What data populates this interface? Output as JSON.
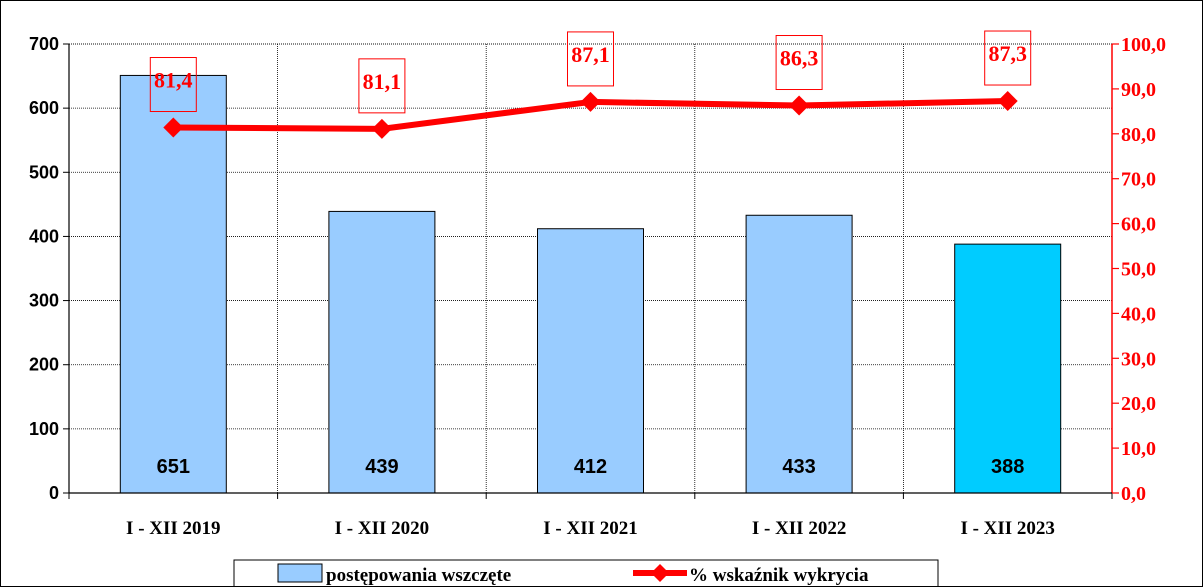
{
  "colors": {
    "bar": "#99ccff",
    "bar_highlight": "#00ccff",
    "line": "#ff0000",
    "axis_left": "#000000",
    "axis_right": "#ff0000"
  },
  "chart_data": {
    "type": "bar",
    "combo": "bar + line (secondary axis)",
    "categories": [
      "I - XII 2019",
      "I - XII 2020",
      "I - XII 2021",
      "I - XII 2022",
      "I - XII 2023"
    ],
    "series": [
      {
        "name": "postępowania wszczęte",
        "type": "bar",
        "axis": "left",
        "values": [
          651,
          439,
          412,
          433,
          388
        ],
        "value_labels": [
          "651",
          "439",
          "412",
          "433",
          "388"
        ],
        "highlight_index": 4
      },
      {
        "name": "% wskaźnik wykrycia",
        "type": "line",
        "axis": "right",
        "marker": "diamond",
        "values": [
          81.4,
          81.1,
          87.1,
          86.3,
          87.3
        ],
        "value_labels": [
          "81,4",
          "81,1",
          "87,1",
          "86,3",
          "87,3"
        ]
      }
    ],
    "left_axis": {
      "min": 0,
      "max": 700,
      "step": 100,
      "tick_labels": [
        "0",
        "100",
        "200",
        "300",
        "400",
        "500",
        "600",
        "700"
      ]
    },
    "right_axis": {
      "min": 0,
      "max": 100,
      "step": 10,
      "tick_labels": [
        "0,0",
        "10,0",
        "20,0",
        "30,0",
        "40,0",
        "50,0",
        "60,0",
        "70,0",
        "80,0",
        "90,0",
        "100,0"
      ]
    },
    "grid": true,
    "legend": {
      "position": "bottom",
      "entries": [
        "postępowania wszczęte",
        "% wskaźnik wykrycia"
      ]
    }
  }
}
